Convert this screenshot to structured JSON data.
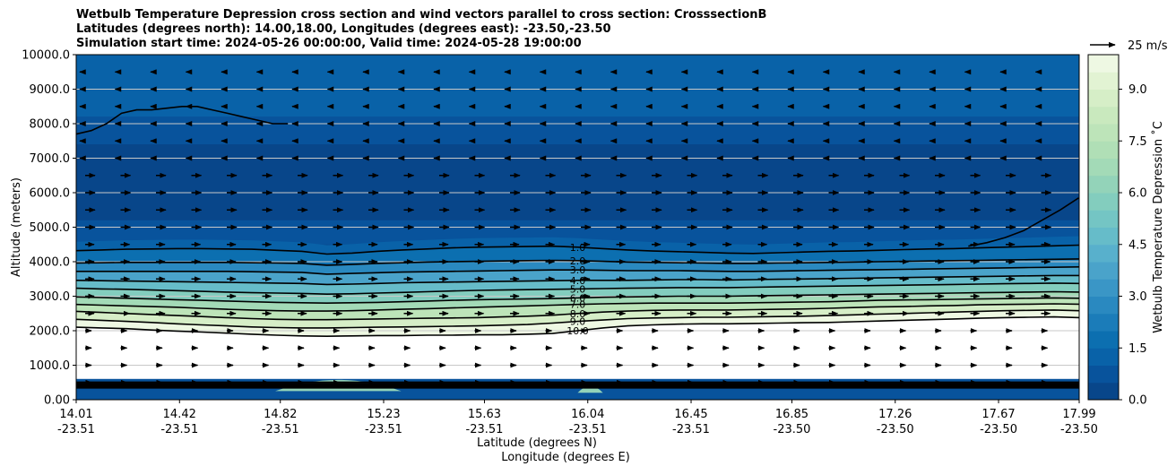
{
  "chart_data": {
    "type": "contour",
    "title_lines": [
      "Wetbulb Temperature Depression cross section and wind vectors parallel to cross section: CrosssectionB",
      "Latitudes (degrees north): 14.00,18.00, Longitudes (degrees east): -23.50,-23.50",
      "Simulation start time: 2024-05-26 00:00:00, Valid time: 2024-05-28 19:00:00"
    ],
    "ylabel": "Altitude (meters)",
    "xlabel_lines": [
      "Latitude (degrees N)",
      "Longitude (degrees E)"
    ],
    "y_ticks": [
      "0.00",
      "1000.0",
      "2000.0",
      "3000.0",
      "4000.0",
      "5000.0",
      "6000.0",
      "7000.0",
      "8000.0",
      "9000.0",
      "10000.0"
    ],
    "ylim": [
      0,
      10000
    ],
    "x_ticks": [
      {
        "lat": "14.01",
        "lon": "-23.51"
      },
      {
        "lat": "14.42",
        "lon": "-23.51"
      },
      {
        "lat": "14.82",
        "lon": "-23.51"
      },
      {
        "lat": "15.23",
        "lon": "-23.51"
      },
      {
        "lat": "15.63",
        "lon": "-23.51"
      },
      {
        "lat": "16.04",
        "lon": "-23.51"
      },
      {
        "lat": "16.45",
        "lon": "-23.51"
      },
      {
        "lat": "16.85",
        "lon": "-23.50"
      },
      {
        "lat": "17.26",
        "lon": "-23.50"
      },
      {
        "lat": "17.67",
        "lon": "-23.50"
      },
      {
        "lat": "17.99",
        "lon": "-23.50"
      }
    ],
    "xlim": [
      14.01,
      17.99
    ],
    "grid": "horizontal",
    "colorbar": {
      "label": "Wetbulb Temperature Depression ˚C",
      "min": 0.0,
      "max": 10.0,
      "ticks": [
        "0.0",
        "1.5",
        "3.0",
        "4.5",
        "6.0",
        "7.5",
        "9.0"
      ],
      "colors": [
        "#08468a",
        "#08539c",
        "#0962a8",
        "#0c6fb0",
        "#1b7cb9",
        "#2a89c0",
        "#3a96c6",
        "#4aa3ca",
        "#58b0cc",
        "#66bcc9",
        "#74c5c4",
        "#83cdbe",
        "#93d3b9",
        "#a3dab7",
        "#b0dfb6",
        "#bde4b9",
        "#c9e9be",
        "#d6eec7",
        "#e2f3d3",
        "#eef8e3"
      ]
    },
    "quiver_key": {
      "label": "25 m/s",
      "magnitude": 25
    },
    "contour_levels": [
      1.0,
      2.0,
      3.0,
      4.0,
      5.0,
      6.0,
      7.0,
      8.0,
      9.0,
      10.0
    ],
    "contour_lines": [
      {
        "level": 10.0,
        "label": "10.0",
        "altitudes": [
          2100,
          2080,
          2060,
          2020,
          1990,
          1960,
          1930,
          1900,
          1870,
          1850,
          1840,
          1850,
          1860,
          1860,
          1870,
          1870,
          1880,
          1880,
          1900,
          1920,
          2000,
          2080,
          2140,
          2170,
          2190,
          2200,
          2200,
          2210,
          2220,
          2230,
          2240,
          2260,
          2280,
          2300,
          2320,
          2340,
          2360,
          2380,
          2390,
          2400,
          2380
        ]
      },
      {
        "level": 9.0,
        "label": "9.0",
        "altitudes": [
          2330,
          2300,
          2270,
          2240,
          2200,
          2170,
          2140,
          2110,
          2090,
          2080,
          2080,
          2090,
          2100,
          2110,
          2120,
          2130,
          2140,
          2160,
          2180,
          2220,
          2270,
          2310,
          2350,
          2370,
          2380,
          2390,
          2390,
          2400,
          2410,
          2420,
          2440,
          2460,
          2480,
          2500,
          2520,
          2540,
          2560,
          2580,
          2590,
          2600,
          2580
        ]
      },
      {
        "level": 8.0,
        "label": "8.0",
        "altitudes": [
          2560,
          2530,
          2500,
          2470,
          2440,
          2410,
          2380,
          2350,
          2330,
          2320,
          2320,
          2330,
          2340,
          2350,
          2360,
          2370,
          2380,
          2400,
          2420,
          2450,
          2500,
          2540,
          2570,
          2590,
          2600,
          2600,
          2600,
          2610,
          2620,
          2630,
          2650,
          2670,
          2690,
          2700,
          2720,
          2730,
          2750,
          2760,
          2770,
          2780,
          2770
        ]
      },
      {
        "level": 7.0,
        "label": "7.0",
        "altitudes": [
          2760,
          2740,
          2720,
          2700,
          2680,
          2650,
          2620,
          2600,
          2580,
          2570,
          2570,
          2580,
          2600,
          2620,
          2640,
          2660,
          2680,
          2700,
          2720,
          2740,
          2760,
          2780,
          2790,
          2800,
          2800,
          2800,
          2800,
          2810,
          2820,
          2830,
          2840,
          2860,
          2880,
          2890,
          2900,
          2910,
          2920,
          2930,
          2940,
          2950,
          2940
        ]
      },
      {
        "level": 6.0,
        "label": "6.0",
        "altitudes": [
          2980,
          2960,
          2940,
          2920,
          2900,
          2880,
          2860,
          2840,
          2820,
          2810,
          2800,
          2810,
          2820,
          2840,
          2860,
          2880,
          2900,
          2910,
          2920,
          2930,
          2950,
          2970,
          2980,
          2990,
          3000,
          3000,
          3000,
          3010,
          3020,
          3030,
          3040,
          3050,
          3060,
          3070,
          3080,
          3090,
          3100,
          3110,
          3120,
          3130,
          3120
        ]
      },
      {
        "level": 5.0,
        "label": "5.0",
        "altitudes": [
          3230,
          3210,
          3200,
          3180,
          3160,
          3140,
          3120,
          3100,
          3090,
          3080,
          3060,
          3070,
          3090,
          3110,
          3130,
          3150,
          3170,
          3180,
          3190,
          3200,
          3210,
          3220,
          3230,
          3240,
          3250,
          3250,
          3250,
          3260,
          3270,
          3280,
          3290,
          3300,
          3310,
          3320,
          3330,
          3340,
          3350,
          3360,
          3370,
          3380,
          3370
        ]
      },
      {
        "level": 4.0,
        "label": "4.0",
        "altitudes": [
          3460,
          3450,
          3440,
          3430,
          3420,
          3410,
          3400,
          3390,
          3380,
          3370,
          3340,
          3350,
          3370,
          3390,
          3400,
          3410,
          3420,
          3430,
          3440,
          3450,
          3460,
          3460,
          3460,
          3470,
          3480,
          3480,
          3470,
          3480,
          3490,
          3500,
          3510,
          3520,
          3530,
          3540,
          3550,
          3560,
          3570,
          3580,
          3590,
          3600,
          3600
        ]
      },
      {
        "level": 3.0,
        "label": "3.0",
        "altitudes": [
          3720,
          3720,
          3720,
          3720,
          3720,
          3720,
          3720,
          3710,
          3700,
          3690,
          3640,
          3660,
          3680,
          3700,
          3710,
          3720,
          3730,
          3740,
          3750,
          3760,
          3760,
          3750,
          3740,
          3740,
          3740,
          3730,
          3720,
          3720,
          3730,
          3740,
          3750,
          3760,
          3770,
          3780,
          3790,
          3800,
          3810,
          3820,
          3830,
          3840,
          3850
        ]
      },
      {
        "level": 2.0,
        "label": "2.0",
        "altitudes": [
          3960,
          3970,
          3980,
          3980,
          3980,
          3980,
          3980,
          3970,
          3960,
          3950,
          3900,
          3920,
          3950,
          3970,
          3990,
          4000,
          4010,
          4020,
          4030,
          4040,
          4030,
          4010,
          3990,
          3980,
          3970,
          3960,
          3950,
          3950,
          3960,
          3970,
          3980,
          3990,
          4000,
          4010,
          4020,
          4030,
          4040,
          4050,
          4060,
          4070,
          4080
        ]
      },
      {
        "level": 1.0,
        "label": "1.0",
        "altitudes": [
          4320,
          4340,
          4360,
          4370,
          4380,
          4380,
          4370,
          4360,
          4330,
          4300,
          4220,
          4250,
          4300,
          4340,
          4370,
          4400,
          4420,
          4430,
          4440,
          4450,
          4420,
          4380,
          4340,
          4310,
          4290,
          4270,
          4250,
          4240,
          4260,
          4280,
          4300,
          4310,
          4330,
          4350,
          4370,
          4380,
          4400,
          4420,
          4440,
          4460,
          4480
        ]
      }
    ]
  }
}
